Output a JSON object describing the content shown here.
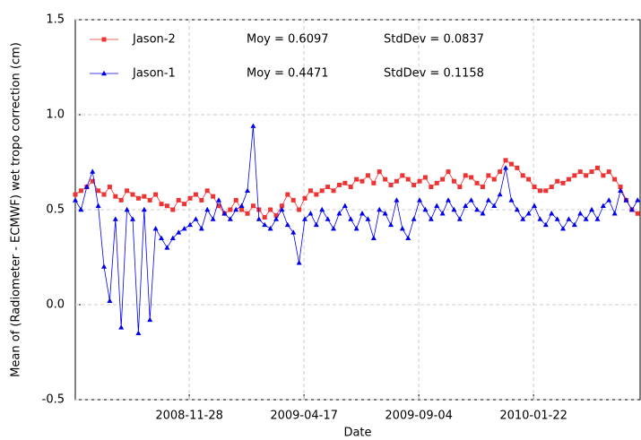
{
  "chart_data": {
    "type": "line",
    "x_label": "Date",
    "y_label": "Mean of (Radiometer - ECMWF) wet tropo correction (cm)",
    "x": [
      "2008-07-12",
      "2008-07-19",
      "2008-07-26",
      "2008-08-02",
      "2008-08-09",
      "2008-08-16",
      "2008-08-23",
      "2008-08-30",
      "2008-09-06",
      "2008-09-13",
      "2008-09-20",
      "2008-09-27",
      "2008-10-04",
      "2008-10-11",
      "2008-10-18",
      "2008-10-25",
      "2008-11-01",
      "2008-11-08",
      "2008-11-15",
      "2008-11-22",
      "2008-11-29",
      "2008-12-06",
      "2008-12-13",
      "2008-12-20",
      "2008-12-27",
      "2009-01-03",
      "2009-01-10",
      "2009-01-17",
      "2009-01-24",
      "2009-01-31",
      "2009-02-07",
      "2009-02-14",
      "2009-02-21",
      "2009-02-28",
      "2009-03-07",
      "2009-03-14",
      "2009-03-21",
      "2009-03-28",
      "2009-04-04",
      "2009-04-11",
      "2009-04-18",
      "2009-04-25",
      "2009-05-02",
      "2009-05-09",
      "2009-05-16",
      "2009-05-23",
      "2009-05-30",
      "2009-06-06",
      "2009-06-13",
      "2009-06-20",
      "2009-06-27",
      "2009-07-04",
      "2009-07-11",
      "2009-07-18",
      "2009-07-25",
      "2009-08-01",
      "2009-08-08",
      "2009-08-15",
      "2009-08-22",
      "2009-08-29",
      "2009-09-05",
      "2009-09-12",
      "2009-09-19",
      "2009-09-26",
      "2009-10-03",
      "2009-10-10",
      "2009-10-17",
      "2009-10-24",
      "2009-10-31",
      "2009-11-07",
      "2009-11-14",
      "2009-11-21",
      "2009-11-28",
      "2009-12-05",
      "2009-12-12",
      "2009-12-19",
      "2009-12-26",
      "2010-01-02",
      "2010-01-09",
      "2010-01-16",
      "2010-01-23",
      "2010-01-30",
      "2010-02-06",
      "2010-02-13",
      "2010-02-20",
      "2010-02-27",
      "2010-03-06",
      "2010-03-13",
      "2010-03-20",
      "2010-03-27",
      "2010-04-03",
      "2010-04-10",
      "2010-04-17",
      "2010-04-24",
      "2010-05-01",
      "2010-05-08",
      "2010-05-15",
      "2010-05-22",
      "2010-05-29"
    ],
    "series": [
      {
        "name": "Jason-2",
        "color": "#ee3333",
        "marker": "square",
        "stats": [
          "Moy = 0.6097",
          "StdDev = 0.0837"
        ],
        "values": [
          0.58,
          0.6,
          0.62,
          0.65,
          0.6,
          0.58,
          0.62,
          0.57,
          0.55,
          0.6,
          0.58,
          0.56,
          0.57,
          0.55,
          0.58,
          0.53,
          0.52,
          0.5,
          0.55,
          0.53,
          0.56,
          0.58,
          0.55,
          0.6,
          0.57,
          0.52,
          0.48,
          0.5,
          0.55,
          0.5,
          0.48,
          0.52,
          0.5,
          0.46,
          0.5,
          0.47,
          0.52,
          0.58,
          0.55,
          0.5,
          0.56,
          0.6,
          0.58,
          0.6,
          0.62,
          0.6,
          0.63,
          0.64,
          0.62,
          0.66,
          0.65,
          0.68,
          0.64,
          0.7,
          0.66,
          0.63,
          0.65,
          0.68,
          0.66,
          0.63,
          0.65,
          0.67,
          0.62,
          0.64,
          0.66,
          0.7,
          0.65,
          0.62,
          0.68,
          0.67,
          0.64,
          0.62,
          0.68,
          0.66,
          0.7,
          0.76,
          0.74,
          0.72,
          0.68,
          0.66,
          0.62,
          0.6,
          0.6,
          0.62,
          0.65,
          0.64,
          0.66,
          0.68,
          0.7,
          0.68,
          0.7,
          0.72,
          0.68,
          0.7,
          0.66,
          0.62,
          0.55,
          0.5,
          0.48
        ]
      },
      {
        "name": "Jason-1",
        "color": "#0000ee",
        "marker": "triangle",
        "stats": [
          "Moy = 0.4471",
          "StdDev = 0.1158"
        ],
        "values": [
          0.55,
          0.5,
          0.62,
          0.7,
          0.52,
          0.2,
          0.02,
          0.45,
          -0.12,
          0.5,
          0.45,
          -0.15,
          0.5,
          -0.08,
          0.4,
          0.35,
          0.3,
          0.35,
          0.38,
          0.4,
          0.42,
          0.45,
          0.4,
          0.5,
          0.45,
          0.55,
          0.48,
          0.45,
          0.5,
          0.52,
          0.6,
          0.94,
          0.45,
          0.42,
          0.4,
          0.45,
          0.5,
          0.42,
          0.38,
          0.22,
          0.45,
          0.48,
          0.42,
          0.5,
          0.45,
          0.4,
          0.48,
          0.52,
          0.45,
          0.4,
          0.48,
          0.45,
          0.35,
          0.5,
          0.48,
          0.42,
          0.55,
          0.4,
          0.35,
          0.45,
          0.55,
          0.5,
          0.45,
          0.52,
          0.48,
          0.55,
          0.5,
          0.45,
          0.52,
          0.55,
          0.5,
          0.48,
          0.55,
          0.52,
          0.58,
          0.72,
          0.55,
          0.5,
          0.45,
          0.48,
          0.52,
          0.45,
          0.42,
          0.48,
          0.45,
          0.4,
          0.45,
          0.42,
          0.48,
          0.45,
          0.5,
          0.45,
          0.52,
          0.55,
          0.48,
          0.6,
          0.55,
          0.5,
          0.55
        ]
      }
    ],
    "xlim": [
      "2008-07-12",
      "2010-06-01"
    ],
    "xticks": [
      "2008-11-28",
      "2009-04-17",
      "2009-09-04",
      "2010-01-22"
    ],
    "ylim": [
      -0.5,
      1.5
    ],
    "yticks": [
      {
        "value": -0.5,
        "label": "-0.5"
      },
      {
        "value": 0,
        "label": "0.0"
      },
      {
        "value": 0.5,
        "label": "0.5"
      },
      {
        "value": 1,
        "label": "1.0"
      },
      {
        "value": 1.5,
        "label": "1.5"
      }
    ],
    "grid": true
  }
}
